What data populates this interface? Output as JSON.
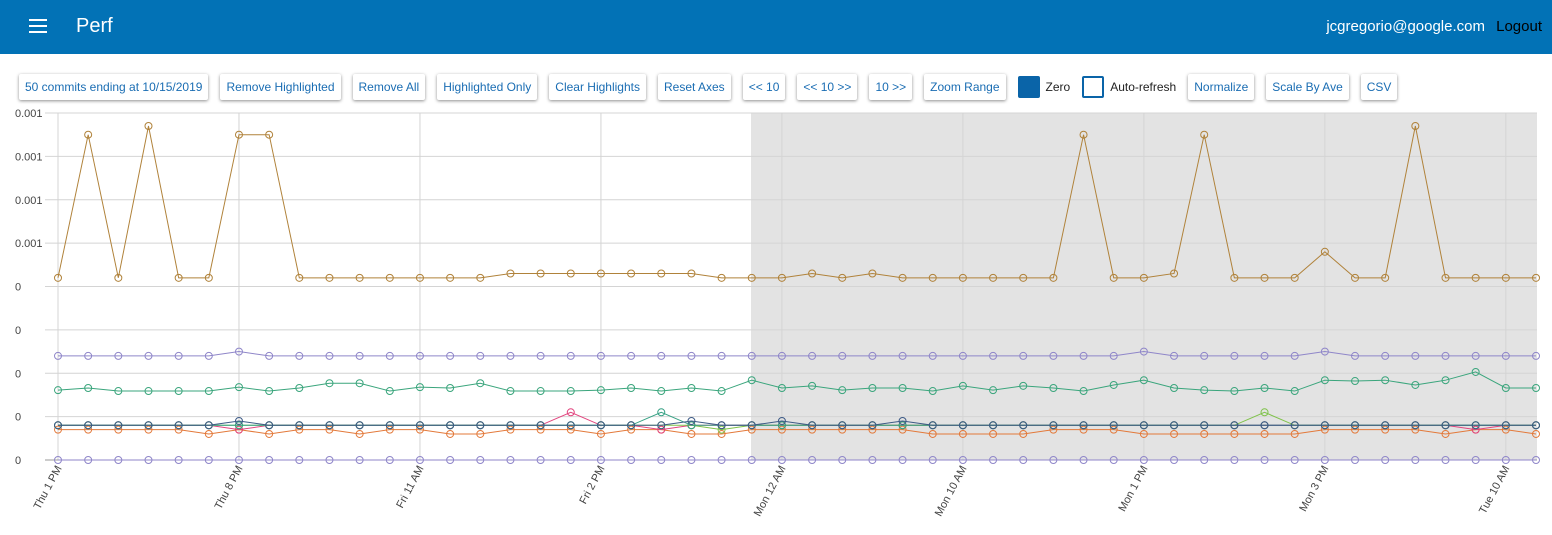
{
  "header": {
    "title": "Perf",
    "user": "jcgregorio@google.com",
    "logout": "Logout"
  },
  "toolbar": {
    "buttons": [
      "50 commits ending at 10/15/2019",
      "Remove Highlighted",
      "Remove All",
      "Highlighted Only",
      "Clear Highlights",
      "Reset Axes",
      "<< 10",
      "<< 10 >>",
      "10 >>",
      "Zoom Range"
    ],
    "checkboxes": [
      {
        "label": "Zero",
        "checked": true
      },
      {
        "label": "Auto-refresh",
        "checked": false
      }
    ],
    "buttons2": [
      "Normalize",
      "Scale By Ave",
      "CSV"
    ]
  },
  "chart_data": {
    "type": "line",
    "grid": true,
    "categories": [
      "Thu 1 PM",
      null,
      null,
      null,
      null,
      null,
      "Thu 8 PM",
      null,
      null,
      null,
      null,
      null,
      "Fri 11 AM",
      null,
      null,
      null,
      null,
      null,
      "Fri 2 PM",
      null,
      null,
      null,
      null,
      null,
      "Mon 12 AM",
      null,
      null,
      null,
      null,
      null,
      "Mon 10 AM",
      null,
      null,
      null,
      null,
      null,
      "Mon 1 PM",
      null,
      null,
      null,
      null,
      null,
      "Mon 3 PM",
      null,
      null,
      null,
      null,
      null,
      "Tue 10 AM",
      null
    ],
    "ylim": [
      0,
      0.0008
    ],
    "yticks": [
      0,
      {
        "value": 0.0001,
        "label": "0"
      },
      {
        "value": 0.0002,
        "label": "0"
      },
      {
        "value": 0.0003,
        "label": "0"
      },
      {
        "value": 0.0004,
        "label": "0"
      },
      {
        "value": 0.0005,
        "label": "0.001"
      },
      {
        "value": 0.0006,
        "label": "0.001"
      },
      {
        "value": 0.0007,
        "label": "0.001"
      },
      {
        "value": 0.0008,
        "label": "0.001"
      }
    ],
    "series": [
      {
        "color": "#8f86c9",
        "values": [
          0,
          0,
          0,
          0,
          0,
          0,
          0,
          0,
          0,
          0,
          0,
          0,
          0,
          0,
          0,
          0,
          0,
          0,
          0,
          0,
          0,
          0,
          0,
          0,
          0,
          0,
          0,
          0,
          0,
          0,
          0,
          0,
          0,
          0,
          0,
          0,
          0,
          0,
          0,
          0,
          0,
          0,
          0,
          0,
          0,
          0,
          0,
          0,
          0,
          0
        ]
      },
      {
        "color": "#e3793a",
        "values": [
          7e-05,
          7e-05,
          7e-05,
          7e-05,
          7e-05,
          6e-05,
          7e-05,
          6e-05,
          7e-05,
          7e-05,
          6e-05,
          7e-05,
          7e-05,
          6e-05,
          6e-05,
          7e-05,
          7e-05,
          7e-05,
          6e-05,
          7e-05,
          7e-05,
          6e-05,
          6e-05,
          7e-05,
          7e-05,
          7e-05,
          7e-05,
          7e-05,
          7e-05,
          6e-05,
          6e-05,
          6e-05,
          6e-05,
          7e-05,
          7e-05,
          7e-05,
          6e-05,
          6e-05,
          6e-05,
          6e-05,
          6e-05,
          6e-05,
          7e-05,
          7e-05,
          7e-05,
          7e-05,
          6e-05,
          7e-05,
          7e-05,
          6e-05
        ]
      },
      {
        "color": "#e2447e",
        "values": [
          8e-05,
          8e-05,
          8e-05,
          8e-05,
          8e-05,
          8e-05,
          7e-05,
          8e-05,
          8e-05,
          8e-05,
          8e-05,
          8e-05,
          8e-05,
          8e-05,
          8e-05,
          8e-05,
          8e-05,
          0.00011,
          8e-05,
          8e-05,
          7e-05,
          8e-05,
          8e-05,
          8e-05,
          8e-05,
          8e-05,
          8e-05,
          8e-05,
          8e-05,
          8e-05,
          8e-05,
          8e-05,
          8e-05,
          8e-05,
          8e-05,
          8e-05,
          8e-05,
          8e-05,
          8e-05,
          8e-05,
          8e-05,
          8e-05,
          8e-05,
          8e-05,
          8e-05,
          8e-05,
          8e-05,
          7e-05,
          8e-05,
          8e-05
        ]
      },
      {
        "color": "#7fc24a",
        "values": [
          8e-05,
          8e-05,
          8e-05,
          8e-05,
          8e-05,
          8e-05,
          8e-05,
          8e-05,
          8e-05,
          8e-05,
          8e-05,
          8e-05,
          8e-05,
          8e-05,
          8e-05,
          8e-05,
          8e-05,
          8e-05,
          8e-05,
          8e-05,
          8e-05,
          8e-05,
          7e-05,
          8e-05,
          8e-05,
          8e-05,
          8e-05,
          8e-05,
          8e-05,
          8e-05,
          8e-05,
          8e-05,
          8e-05,
          8e-05,
          8e-05,
          8e-05,
          8e-05,
          8e-05,
          8e-05,
          8e-05,
          0.00011,
          8e-05,
          8e-05,
          8e-05,
          8e-05,
          8e-05,
          8e-05,
          8e-05,
          8e-05,
          8e-05
        ]
      },
      {
        "color": "#35a083",
        "values": [
          8e-05,
          8e-05,
          8e-05,
          8e-05,
          8e-05,
          8e-05,
          8e-05,
          8e-05,
          8e-05,
          8e-05,
          8e-05,
          8e-05,
          8e-05,
          8e-05,
          8e-05,
          8e-05,
          8e-05,
          8e-05,
          8e-05,
          8e-05,
          0.00011,
          8e-05,
          8e-05,
          8e-05,
          8e-05,
          8e-05,
          8e-05,
          8e-05,
          8e-05,
          8e-05,
          8e-05,
          8e-05,
          8e-05,
          8e-05,
          8e-05,
          8e-05,
          8e-05,
          8e-05,
          8e-05,
          8e-05,
          8e-05,
          8e-05,
          8e-05,
          8e-05,
          8e-05,
          8e-05,
          8e-05,
          8e-05,
          8e-05,
          8e-05
        ]
      },
      {
        "color": "#3d5a86",
        "values": [
          8e-05,
          8e-05,
          8e-05,
          8e-05,
          8e-05,
          8e-05,
          9e-05,
          8e-05,
          8e-05,
          8e-05,
          8e-05,
          8e-05,
          8e-05,
          8e-05,
          8e-05,
          8e-05,
          8e-05,
          8e-05,
          8e-05,
          8e-05,
          8e-05,
          9e-05,
          8e-05,
          8e-05,
          9e-05,
          8e-05,
          8e-05,
          8e-05,
          9e-05,
          8e-05,
          8e-05,
          8e-05,
          8e-05,
          8e-05,
          8e-05,
          8e-05,
          8e-05,
          8e-05,
          8e-05,
          8e-05,
          8e-05,
          8e-05,
          8e-05,
          8e-05,
          8e-05,
          8e-05,
          8e-05,
          8e-05,
          8e-05,
          8e-05
        ]
      },
      {
        "color": "#3aa57c",
        "values": [
          0.000161,
          0.000166,
          0.000159,
          0.000159,
          0.000159,
          0.000159,
          0.000168,
          0.000159,
          0.000166,
          0.000177,
          0.000177,
          0.000159,
          0.000168,
          0.000166,
          0.000177,
          0.000159,
          0.000159,
          0.000159,
          0.000161,
          0.000166,
          0.000159,
          0.000166,
          0.000159,
          0.000184,
          0.000166,
          0.000171,
          0.000161,
          0.000166,
          0.000166,
          0.000159,
          0.000171,
          0.000161,
          0.000171,
          0.000166,
          0.000159,
          0.000173,
          0.000184,
          0.000166,
          0.000161,
          0.000159,
          0.000166,
          0.000159,
          0.000184,
          0.000182,
          0.000184,
          0.000173,
          0.000184,
          0.000203,
          0.000166,
          0.000166
        ]
      },
      {
        "color": "#8f86c9",
        "values": [
          0.00024,
          0.00024,
          0.00024,
          0.00024,
          0.00024,
          0.00024,
          0.00025,
          0.00024,
          0.00024,
          0.00024,
          0.00024,
          0.00024,
          0.00024,
          0.00024,
          0.00024,
          0.00024,
          0.00024,
          0.00024,
          0.00024,
          0.00024,
          0.00024,
          0.00024,
          0.00024,
          0.00024,
          0.00024,
          0.00024,
          0.00024,
          0.00024,
          0.00024,
          0.00024,
          0.00024,
          0.00024,
          0.00024,
          0.00024,
          0.00024,
          0.00024,
          0.00025,
          0.00024,
          0.00024,
          0.00024,
          0.00024,
          0.00024,
          0.00025,
          0.00024,
          0.00024,
          0.00024,
          0.00024,
          0.00024,
          0.00024,
          0.00024
        ]
      },
      {
        "color": "#b0823a",
        "values": [
          0.00042,
          0.00075,
          0.00042,
          0.00077,
          0.00042,
          0.00042,
          0.00075,
          0.00075,
          0.00042,
          0.00042,
          0.00042,
          0.00042,
          0.00042,
          0.00042,
          0.00042,
          0.00043,
          0.00043,
          0.00043,
          0.00043,
          0.00043,
          0.00043,
          0.00043,
          0.00042,
          0.00042,
          0.00042,
          0.00043,
          0.00042,
          0.00043,
          0.00042,
          0.00042,
          0.00042,
          0.00042,
          0.00042,
          0.00042,
          0.00075,
          0.00042,
          0.00042,
          0.00043,
          0.00075,
          0.00042,
          0.00042,
          0.00042,
          0.00048,
          0.00042,
          0.00042,
          0.00077,
          0.00042,
          0.00042,
          0.00042,
          0.00042
        ]
      }
    ]
  }
}
